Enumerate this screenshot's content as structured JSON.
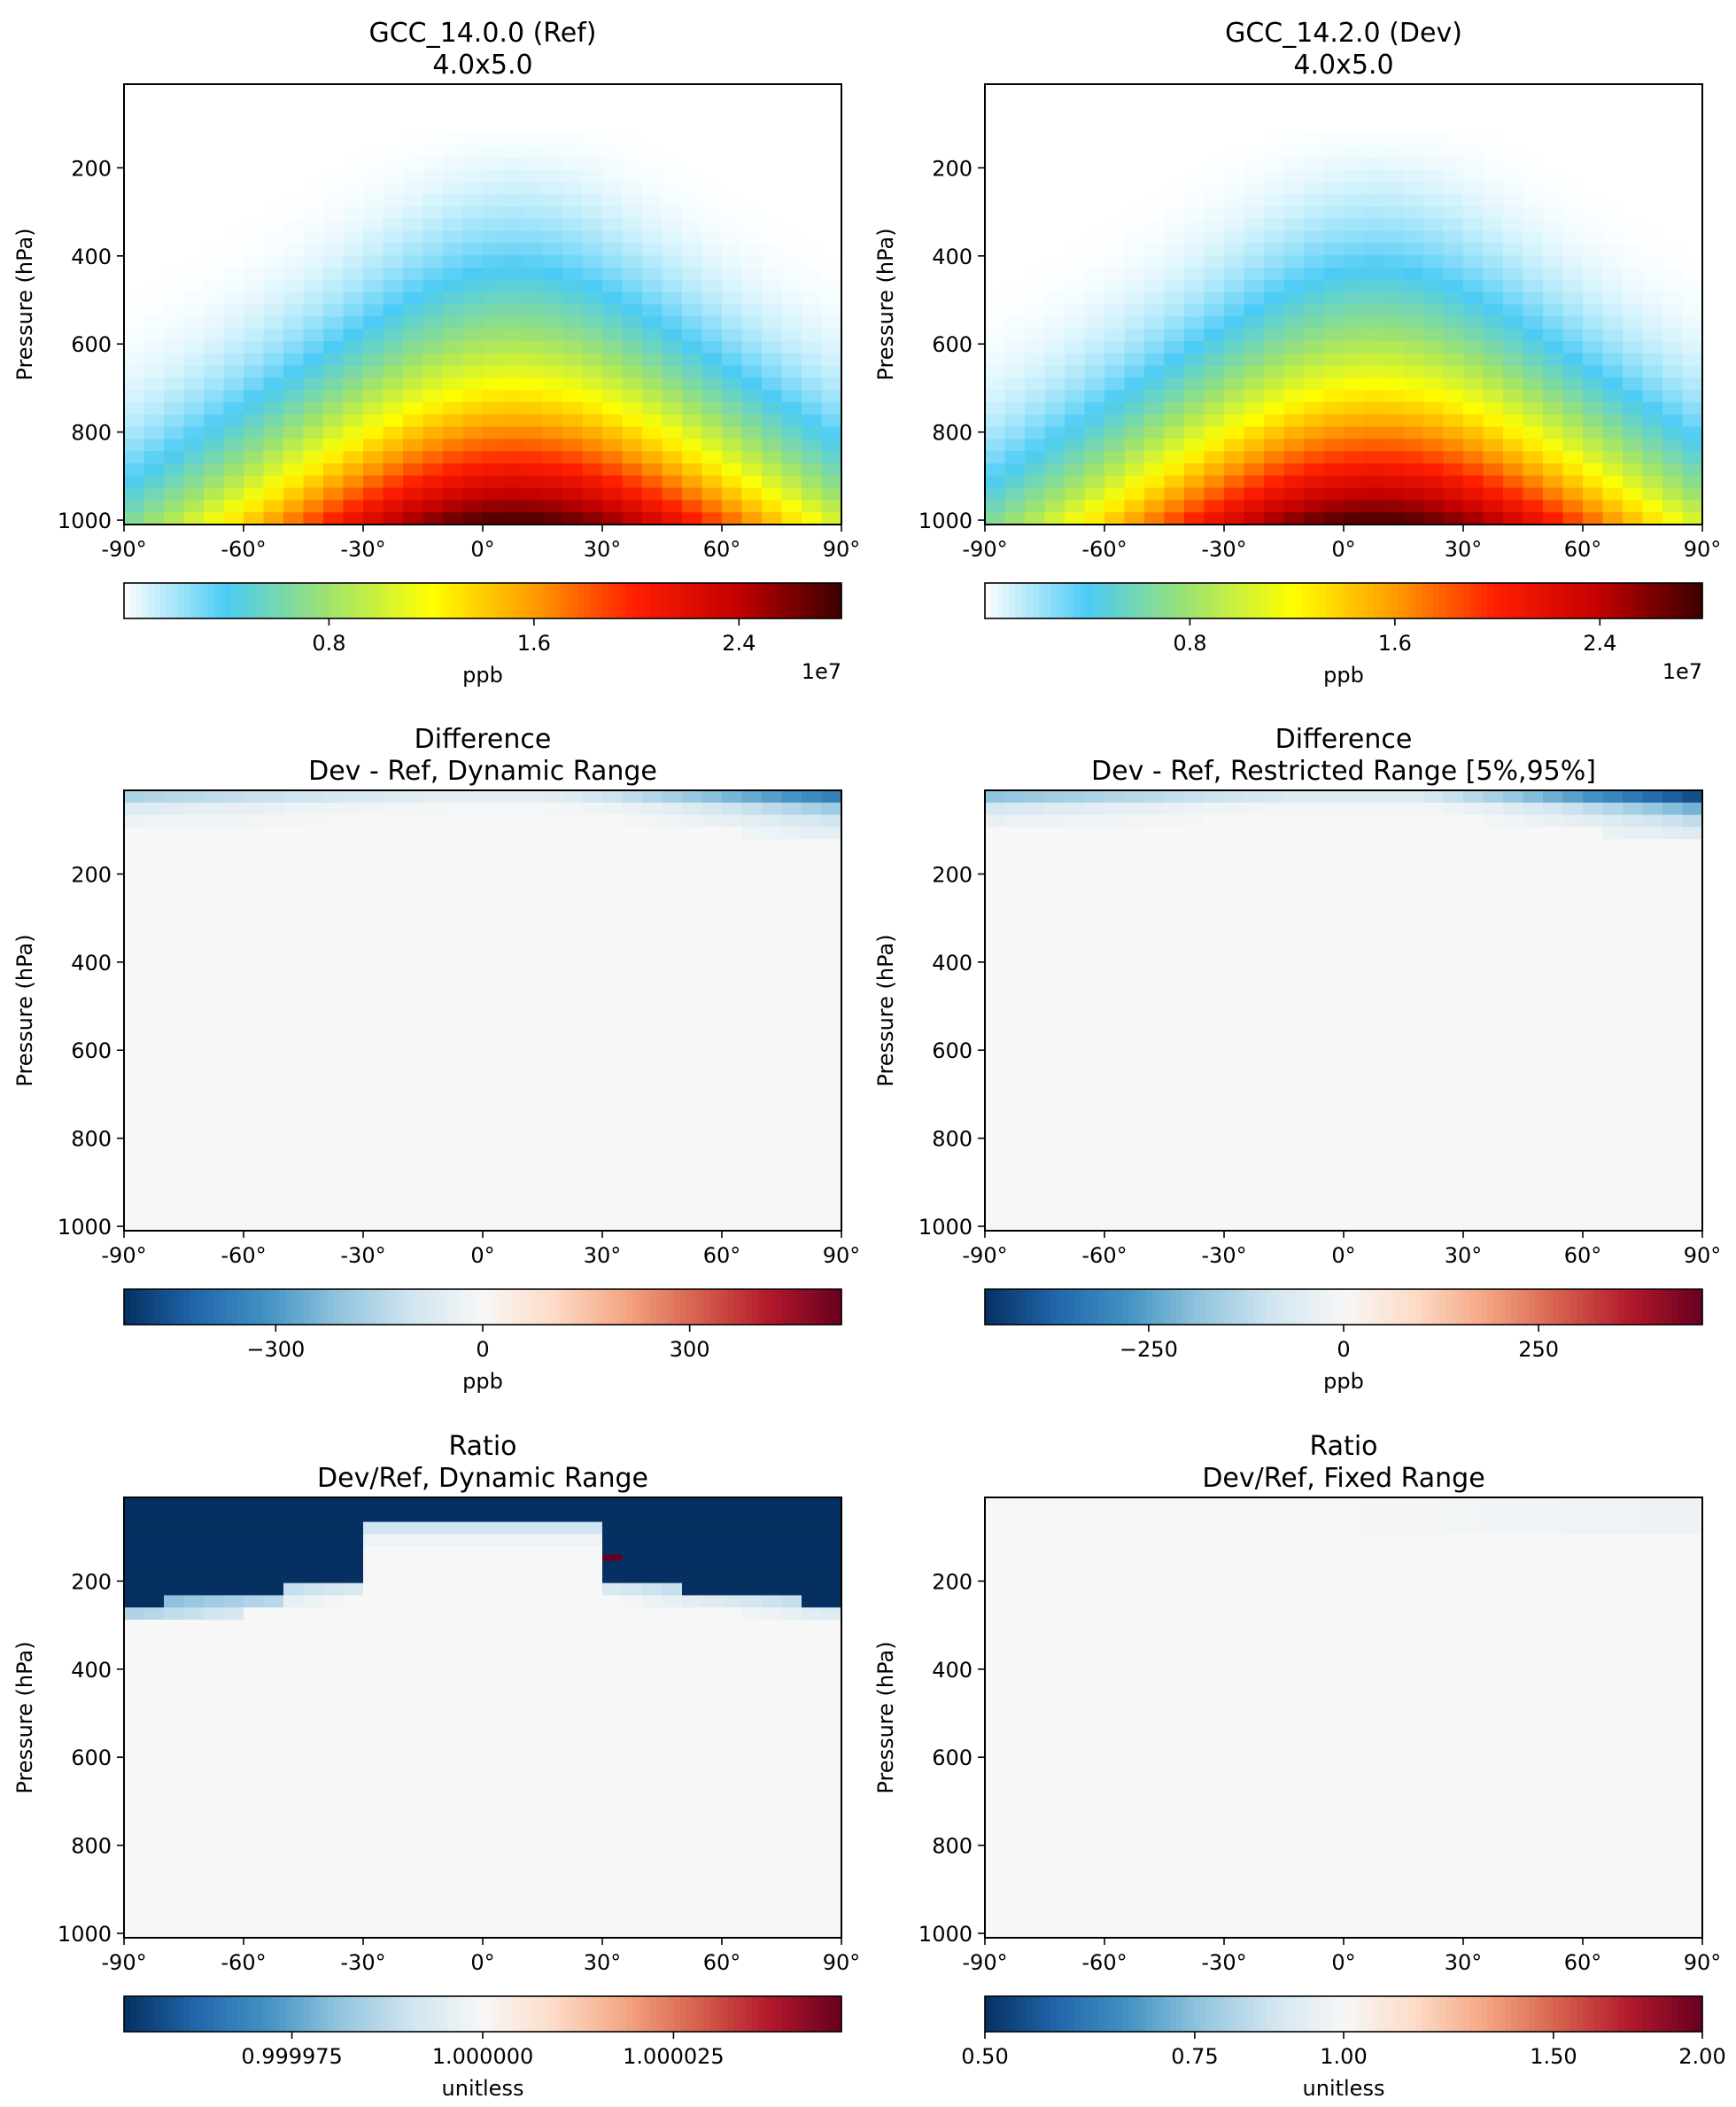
{
  "colors": {
    "wbgyr": [
      "#ffffff",
      "#4bcbf5",
      "#9fe36e",
      "#ffff00",
      "#ff9c00",
      "#ff1d00",
      "#c20000",
      "#3a0000"
    ],
    "rdbu": [
      "#053061",
      "#2166ac",
      "#4393c3",
      "#92c5de",
      "#d1e5f0",
      "#f7f7f7",
      "#fddbc7",
      "#f4a582",
      "#d6604d",
      "#b2182b",
      "#67001f"
    ],
    "axis": "#000000"
  },
  "chart_data": [
    {
      "id": "ref",
      "type": "heatmap",
      "title": "GCC_14.0.0 (Ref)",
      "subtitle": "4.0x5.0",
      "xlabel": "",
      "ylabel": "Pressure (hPa)",
      "xlim": [
        -90,
        90
      ],
      "ylim": [
        1010,
        10
      ],
      "xticks": [
        "-90°",
        "-60°",
        "-30°",
        "0°",
        "30°",
        "60°",
        "90°"
      ],
      "yticks": [
        "200",
        "400",
        "600",
        "800",
        "1000"
      ],
      "field": "plume",
      "cmap": "wbgyr",
      "cbar": {
        "vmin": 0,
        "vmax": 28000000,
        "ticks": [
          {
            "v": 8000000,
            "label": "0.8"
          },
          {
            "v": 16000000,
            "label": "1.6"
          },
          {
            "v": 24000000,
            "label": "2.4"
          }
        ],
        "label": "ppb",
        "offset": "1e7"
      }
    },
    {
      "id": "dev",
      "type": "heatmap",
      "title": "GCC_14.2.0 (Dev)",
      "subtitle": "4.0x5.0",
      "xlabel": "",
      "ylabel": "Pressure (hPa)",
      "xlim": [
        -90,
        90
      ],
      "ylim": [
        1010,
        10
      ],
      "xticks": [
        "-90°",
        "-60°",
        "-30°",
        "0°",
        "30°",
        "60°",
        "90°"
      ],
      "yticks": [
        "200",
        "400",
        "600",
        "800",
        "1000"
      ],
      "field": "plume",
      "cmap": "wbgyr",
      "cbar": {
        "vmin": 0,
        "vmax": 28000000,
        "ticks": [
          {
            "v": 8000000,
            "label": "0.8"
          },
          {
            "v": 16000000,
            "label": "1.6"
          },
          {
            "v": 24000000,
            "label": "2.4"
          }
        ],
        "label": "ppb",
        "offset": "1e7"
      }
    },
    {
      "id": "diff-dynamic",
      "type": "heatmap",
      "title": "Difference",
      "subtitle": "Dev - Ref, Dynamic Range",
      "xlabel": "",
      "ylabel": "Pressure (hPa)",
      "xlim": [
        -90,
        90
      ],
      "ylim": [
        1010,
        10
      ],
      "xticks": [
        "-90°",
        "-60°",
        "-30°",
        "0°",
        "30°",
        "60°",
        "90°"
      ],
      "yticks": [
        "200",
        "400",
        "600",
        "800",
        "1000"
      ],
      "field": "diff",
      "cmap": "rdbu",
      "cbar": {
        "vmin": -520,
        "vmax": 520,
        "ticks": [
          {
            "v": -300,
            "label": "−300"
          },
          {
            "v": 0,
            "label": "0"
          },
          {
            "v": 300,
            "label": "300"
          }
        ],
        "label": "ppb",
        "offset": ""
      }
    },
    {
      "id": "diff-restricted",
      "type": "heatmap",
      "title": "Difference",
      "subtitle": "Dev - Ref, Restricted Range [5%,95%]",
      "xlabel": "",
      "ylabel": "Pressure (hPa)",
      "xlim": [
        -90,
        90
      ],
      "ylim": [
        1010,
        10
      ],
      "xticks": [
        "-90°",
        "-60°",
        "-30°",
        "0°",
        "30°",
        "60°",
        "90°"
      ],
      "yticks": [
        "200",
        "400",
        "600",
        "800",
        "1000"
      ],
      "field": "diff_strong",
      "cmap": "rdbu",
      "cbar": {
        "vmin": -460,
        "vmax": 460,
        "ticks": [
          {
            "v": -250,
            "label": "−250"
          },
          {
            "v": 0,
            "label": "0"
          },
          {
            "v": 250,
            "label": "250"
          }
        ],
        "label": "ppb",
        "offset": ""
      }
    },
    {
      "id": "ratio-dynamic",
      "type": "heatmap",
      "title": "Ratio",
      "subtitle": "Dev/Ref, Dynamic Range",
      "xlabel": "",
      "ylabel": "Pressure (hPa)",
      "xlim": [
        -90,
        90
      ],
      "ylim": [
        1010,
        10
      ],
      "xticks": [
        "-90°",
        "-60°",
        "-30°",
        "0°",
        "30°",
        "60°",
        "90°"
      ],
      "yticks": [
        "200",
        "400",
        "600",
        "800",
        "1000"
      ],
      "field": "ratio_dynamic",
      "cmap": "rdbu",
      "cbar": {
        "vmin": 0.999953,
        "vmax": 1.000047,
        "ticks": [
          {
            "v": 0.999975,
            "label": "0.999975"
          },
          {
            "v": 1.0,
            "label": "1.000000"
          },
          {
            "v": 1.000025,
            "label": "1.000025"
          }
        ],
        "label": "unitless",
        "offset": ""
      }
    },
    {
      "id": "ratio-fixed",
      "type": "heatmap",
      "title": "Ratio",
      "subtitle": "Dev/Ref, Fixed Range",
      "xlabel": "",
      "ylabel": "Pressure (hPa)",
      "xlim": [
        -90,
        90
      ],
      "ylim": [
        1010,
        10
      ],
      "xticks": [
        "-90°",
        "-60°",
        "-30°",
        "0°",
        "30°",
        "60°",
        "90°"
      ],
      "yticks": [
        "200",
        "400",
        "600",
        "800",
        "1000"
      ],
      "field": "ratio_fixed",
      "cmap": "rdbu",
      "cbar": {
        "vmin": 0.5,
        "vmax": 2.0,
        "scale": "log2",
        "ticks": [
          {
            "v": 0.5,
            "label": "0.50"
          },
          {
            "v": 0.75,
            "label": "0.75"
          },
          {
            "v": 1.0,
            "label": "1.00"
          },
          {
            "v": 1.5,
            "label": "1.50"
          },
          {
            "v": 2.0,
            "label": "2.00"
          }
        ],
        "label": "unitless",
        "offset": ""
      }
    }
  ]
}
